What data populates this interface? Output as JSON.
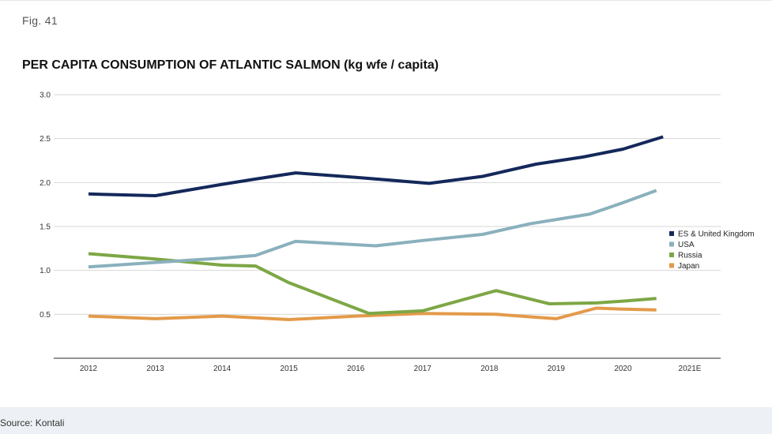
{
  "figure": {
    "label": "Fig. 41",
    "source": "Source: Kontali"
  },
  "chart_data": {
    "type": "line",
    "title": "PER CAPITA CONSUMPTION OF ATLANTIC SALMON (kg wfe / capita)",
    "xlabel": "",
    "ylabel": "",
    "categories": [
      "2012",
      "2013",
      "2014",
      "2015",
      "2016",
      "2017",
      "2018",
      "2019",
      "2020",
      "2021E"
    ],
    "ylim": [
      0,
      3.0
    ],
    "yticks": [
      "3.0",
      "2.5",
      "2.0",
      "1.5",
      "1.0",
      "0.5"
    ],
    "ytick_values": [
      3.0,
      2.5,
      2.0,
      1.5,
      1.0,
      0.5
    ],
    "grid": "horizontal",
    "legend_position": "right",
    "series": [
      {
        "name": "ES & United Kingdom",
        "color": "#14285a",
        "x": [
          2012.0,
          2013.0,
          2014.0,
          2014.5,
          2015.1,
          2016.0,
          2017.1,
          2017.9,
          2018.7,
          2019.4,
          2020.0,
          2020.6
        ],
        "values": [
          1.87,
          1.85,
          1.98,
          2.04,
          2.11,
          2.06,
          1.99,
          2.07,
          2.21,
          2.29,
          2.38,
          2.52
        ]
      },
      {
        "name": "USA",
        "color": "#8ab0bd",
        "x": [
          2012.0,
          2013.0,
          2014.0,
          2014.5,
          2015.1,
          2016.3,
          2017.0,
          2017.9,
          2018.6,
          2019.5,
          2020.0,
          2020.5
        ],
        "values": [
          1.04,
          1.09,
          1.14,
          1.17,
          1.33,
          1.28,
          1.34,
          1.41,
          1.53,
          1.64,
          1.77,
          1.91
        ]
      },
      {
        "name": "Russia",
        "color": "#7da745",
        "x": [
          2012.0,
          2013.0,
          2014.0,
          2014.5,
          2015.0,
          2016.2,
          2017.0,
          2018.1,
          2018.9,
          2019.6,
          2020.0,
          2020.5
        ],
        "values": [
          1.19,
          1.13,
          1.06,
          1.05,
          0.86,
          0.51,
          0.54,
          0.77,
          0.62,
          0.63,
          0.65,
          0.68
        ]
      },
      {
        "name": "Japan",
        "color": "#e39a4a",
        "x": [
          2012.0,
          2013.0,
          2014.0,
          2014.5,
          2015.0,
          2016.0,
          2017.0,
          2018.1,
          2019.0,
          2019.6,
          2020.0,
          2020.5
        ],
        "values": [
          0.48,
          0.45,
          0.48,
          0.46,
          0.44,
          0.48,
          0.51,
          0.5,
          0.45,
          0.57,
          0.56,
          0.55
        ]
      }
    ]
  }
}
